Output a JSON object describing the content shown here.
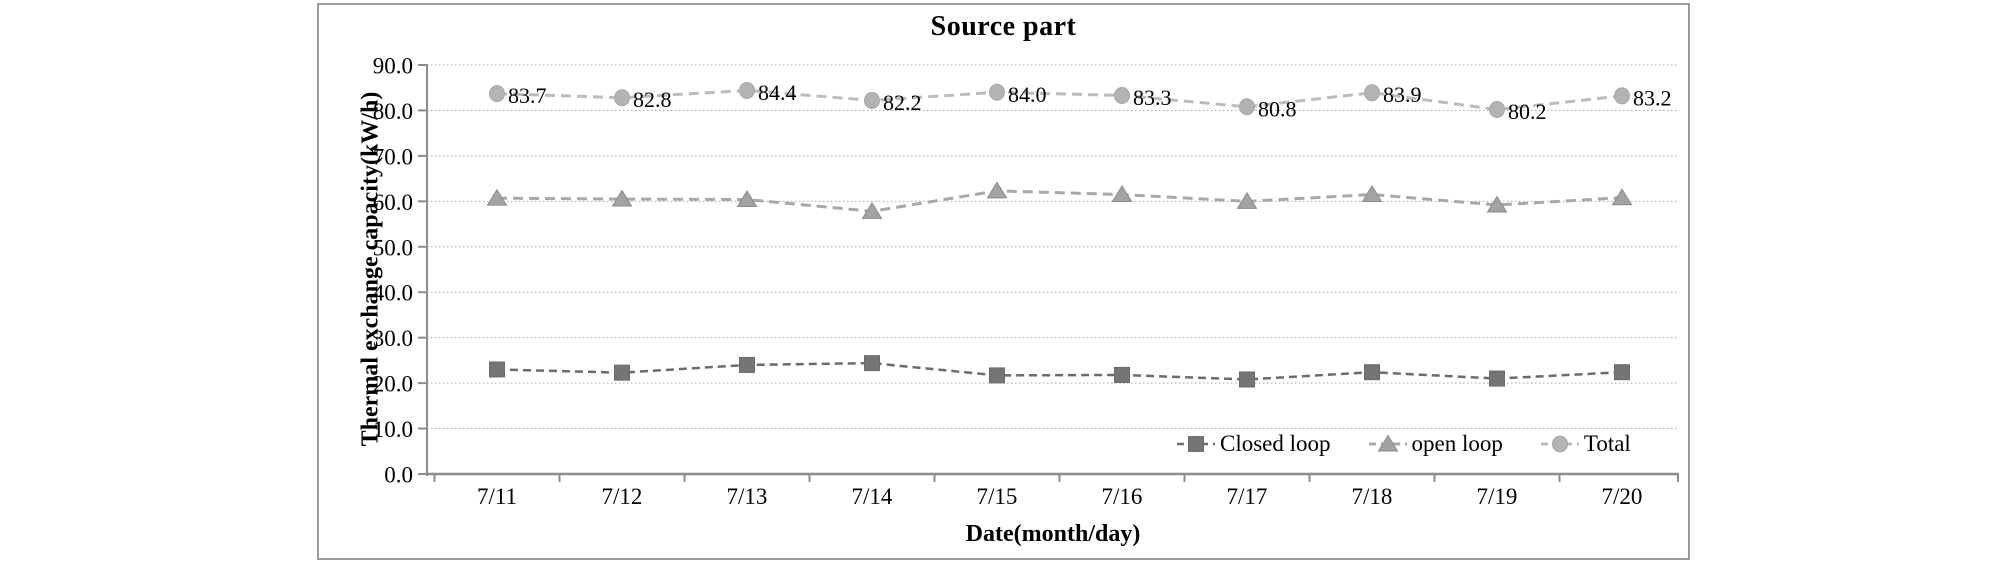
{
  "chart_data": {
    "type": "line",
    "title": "Source part",
    "xlabel": "Date(month/day)",
    "ylabel": "Thermal exchange capacity(kW/h)",
    "ylim": [
      0,
      90
    ],
    "ytick_step": 10,
    "ytick_decimals": 1,
    "grid": "horizontal dotted",
    "legend_position": "inside bottom-right",
    "categories": [
      "7/11",
      "7/12",
      "7/13",
      "7/14",
      "7/15",
      "7/16",
      "7/17",
      "7/18",
      "7/19",
      "7/20"
    ],
    "series": [
      {
        "name": "Closed loop",
        "marker": "square-marker-icon",
        "line_color": "#6b6b6b",
        "fill_color": "#757575",
        "edge_color": "#6b6b6b",
        "values": [
          23.0,
          22.3,
          24.0,
          24.4,
          21.7,
          21.8,
          20.8,
          22.4,
          21.0,
          22.4
        ]
      },
      {
        "name": "open loop",
        "marker": "triangle-marker-icon",
        "line_color": "#a8a8a8",
        "fill_color": "#a3a3a3",
        "edge_color": "#8b8b8b",
        "values": [
          60.7,
          60.5,
          60.4,
          57.8,
          62.3,
          61.5,
          60.0,
          61.5,
          59.2,
          60.8
        ]
      },
      {
        "name": "Total",
        "marker": "circle-marker-icon",
        "line_color": "#bcbcbc",
        "fill_color": "#b3b3b3",
        "edge_color": "#a8a8a8",
        "values": [
          83.7,
          82.8,
          84.4,
          82.2,
          84.0,
          83.3,
          80.8,
          83.9,
          80.2,
          83.2
        ],
        "data_labels": [
          "83.7",
          "82.8",
          "84.4",
          "82.2",
          "84.0",
          "83.3",
          "80.8",
          "83.9",
          "80.2",
          "83.2"
        ]
      }
    ],
    "colors": {
      "text": "#000000",
      "axis": "#8c8c8c",
      "gridline": "#a6a6a6",
      "panel_border": "#9c9c9c",
      "background": "#ffffff"
    }
  }
}
